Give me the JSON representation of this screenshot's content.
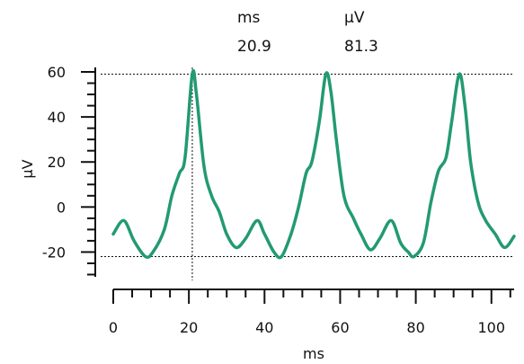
{
  "readout": {
    "x_label": "ms",
    "y_label": "µV",
    "x_value": "20.9",
    "y_value": "81.3"
  },
  "chart_data": {
    "type": "line",
    "title": "",
    "xlabel": "ms",
    "ylabel": "µV",
    "xlim": [
      0,
      106
    ],
    "ylim": [
      -31,
      62
    ],
    "x_ticks": [
      0,
      20,
      40,
      60,
      80,
      100
    ],
    "y_ticks": [
      -20,
      0,
      20,
      40,
      60
    ],
    "grid": false,
    "line_color": "#229a72",
    "crosshair": {
      "x": 20.9,
      "y_levels": [
        59,
        -22
      ],
      "color": "#111111",
      "style": "dotted"
    },
    "series": [
      {
        "x": [
          0,
          2.8,
          5.5,
          8.5,
          10.5,
          13.5,
          15.5,
          17.5,
          19,
          20.9,
          22,
          24,
          26,
          28,
          30,
          32.5,
          35,
          38,
          40,
          42.5,
          44.5,
          47,
          49,
          51,
          52.5,
          54.5,
          56.2,
          57.5,
          59,
          61,
          63.5,
          65.5,
          68,
          70.5,
          73.5,
          76,
          78,
          79.5,
          82,
          84,
          86,
          88,
          89.5,
          91.5,
          93,
          94.5,
          96.5,
          98.5,
          101,
          103.5,
          106
        ],
        "y": [
          -12,
          -6,
          -15,
          -22,
          -20,
          -10,
          5,
          15,
          22,
          59,
          50,
          18,
          5,
          -2,
          -12,
          -18,
          -14,
          -6,
          -12,
          -20,
          -22,
          -12,
          0,
          15,
          20,
          38,
          59,
          52,
          30,
          5,
          -5,
          -12,
          -19,
          -14,
          -6,
          -16,
          -20,
          -22,
          -16,
          2,
          16,
          22,
          38,
          59,
          45,
          20,
          2,
          -6,
          -12,
          -18,
          -13
        ]
      }
    ]
  }
}
